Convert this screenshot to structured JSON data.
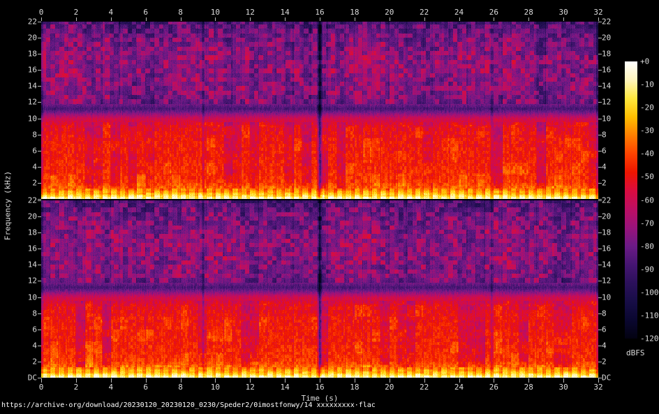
{
  "figure": {
    "background": "#000000",
    "caption_url": "https://archive·org/download/20230120_20230120_0230/Speder2/0imostfonwy/14 xxxxxxxxx·flac",
    "text_color": "#dcdcdc"
  },
  "axes": {
    "time": {
      "title": "Time (s)",
      "tick_labels": [
        "0",
        "2",
        "4",
        "6",
        "8",
        "10",
        "12",
        "14",
        "16",
        "18",
        "20",
        "22",
        "24",
        "26",
        "28",
        "30",
        "32"
      ]
    },
    "freq": {
      "title": "Frequency (kHz)",
      "panel_tick_labels": [
        "22",
        "20",
        "18",
        "16",
        "14",
        "12",
        "10",
        "8",
        "6",
        "4",
        "2"
      ],
      "dc_label": "DC"
    }
  },
  "colorbar": {
    "unit": "dBFS",
    "tick_labels": [
      "+0",
      "-10",
      "-20",
      "-30",
      "-40",
      "-50",
      "-60",
      "-70",
      "-80",
      "-90",
      "-100",
      "-110",
      "-120"
    ]
  },
  "chart_data": {
    "type": "heatmap",
    "subtype": "stereo-audio-spectrogram",
    "channels": 2,
    "channel_layout": "channel 1 top panel, channel 2 bottom panel, identical axes",
    "x_axis": {
      "label": "Time (s)",
      "min": 0,
      "max": 32,
      "tick_step": 2
    },
    "y_axis": {
      "label": "Frequency (kHz)",
      "min": 0,
      "min_label": "DC",
      "max": 22,
      "tick_step": 2
    },
    "z_axis": {
      "label": "dBFS",
      "min": -120,
      "max": 0,
      "tick_step": 10,
      "colorbar_position": "right"
    },
    "palette_stops_dbfs_hex": [
      [
        0,
        "#ffffff"
      ],
      [
        -8,
        "#fff5bd"
      ],
      [
        -16,
        "#ffe83e"
      ],
      [
        -24,
        "#ffbf00"
      ],
      [
        -32,
        "#ff7e00"
      ],
      [
        -40,
        "#ff4300"
      ],
      [
        -48,
        "#ee1500"
      ],
      [
        -56,
        "#d90c40"
      ],
      [
        -64,
        "#bc0e63"
      ],
      [
        -72,
        "#99137b"
      ],
      [
        -80,
        "#6b1a86"
      ],
      [
        -88,
        "#461572"
      ],
      [
        -96,
        "#2b105b"
      ],
      [
        -104,
        "#170d46"
      ],
      [
        -112,
        "#0a0730"
      ],
      [
        -120,
        "#030211"
      ]
    ],
    "frequency_profile_dbfs": [
      [
        0,
        -5
      ],
      [
        0.25,
        -14
      ],
      [
        0.6,
        -24
      ],
      [
        1.2,
        -34
      ],
      [
        2,
        -42
      ],
      [
        4,
        -46
      ],
      [
        7,
        -48
      ],
      [
        9,
        -52
      ],
      [
        10,
        -60
      ],
      [
        10.8,
        -80
      ],
      [
        11.2,
        -88
      ],
      [
        11.7,
        -80
      ],
      [
        12.5,
        -76
      ],
      [
        14,
        -74
      ],
      [
        17,
        -73
      ],
      [
        19.5,
        -77
      ],
      [
        21.5,
        -84
      ],
      [
        22,
        -87
      ]
    ],
    "beat_period_s": 0.5,
    "quiet_gaps_s": [
      {
        "t": 16.0,
        "width": 0.18,
        "depth_db": -34
      },
      {
        "t": 9.3,
        "width": 0.1,
        "depth_db": -16
      },
      {
        "t": 25.9,
        "width": 0.1,
        "depth_db": -14
      }
    ],
    "features": [
      "Two stacked spectrogram panels, one per stereo channel, sharing the 0-32 s time axis",
      "Very loud bass band below ~1 kHz (about -5 to -25 dBFS) with bright yellow blobs on every 0.5 s beat",
      "Broad red energy around -40 to -55 dBFS from ~1.5 to 9.5 kHz with vertical beat striping and occasional purple quiet columns",
      "Dark horizontal notch near ~11 kHz (about -85 to -90 dBFS) in both channels",
      "Purple band from ~12 to 22 kHz (about -70 to -80 dBFS) patterned with grid-like magenta patches",
      "Strong quiet vertical gap at ~16 s; fainter gaps near ~9.3 s and ~25.9 s",
      "Steady ~120 BPM beat (0.5 s period) continuous across the whole 32 s"
    ]
  }
}
